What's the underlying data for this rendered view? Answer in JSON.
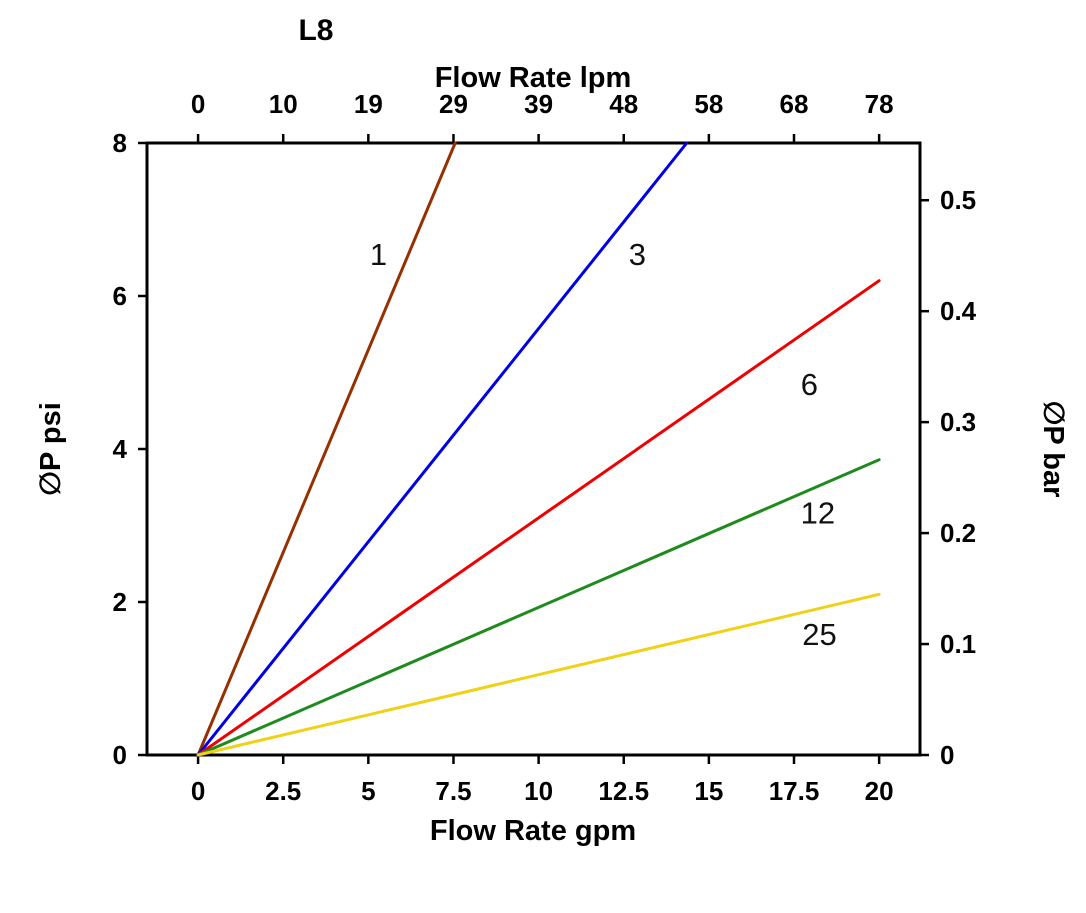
{
  "chart_data": {
    "type": "line",
    "title": "L8",
    "axes": {
      "x_bottom": {
        "label": "Flow Rate gpm",
        "range": [
          -1.5,
          21.2
        ],
        "ticks": [
          0,
          2.5,
          5,
          7.5,
          10,
          12.5,
          15,
          17.5,
          20
        ]
      },
      "x_top": {
        "label": "Flow Rate lpm",
        "tick_positions_gpm": [
          0,
          2.5,
          5,
          7.5,
          10,
          12.5,
          15,
          17.5,
          20
        ],
        "tick_labels": [
          "0",
          "10",
          "19",
          "29",
          "39",
          "48",
          "58",
          "68",
          "78"
        ]
      },
      "y_left": {
        "label": "∅P psi",
        "range": [
          0,
          8
        ],
        "ticks": [
          0,
          2,
          4,
          6,
          8
        ]
      },
      "y_right": {
        "label": "∅P bar",
        "ticks": [
          0,
          0.1,
          0.2,
          0.3,
          0.4,
          0.5
        ],
        "psi_per_bar": 14.5038
      }
    },
    "series": [
      {
        "name": "1",
        "label": "1",
        "color": "#963000",
        "points": [
          [
            0,
            0
          ],
          [
            7.55,
            8
          ]
        ],
        "label_at": [
          5.3,
          6.55
        ]
      },
      {
        "name": "3",
        "label": "3",
        "color": "#0000e6",
        "points": [
          [
            0,
            0
          ],
          [
            14.35,
            8
          ]
        ],
        "label_at": [
          12.9,
          6.55
        ]
      },
      {
        "name": "6",
        "label": "6",
        "color": "#f00000",
        "points": [
          [
            0,
            0
          ],
          [
            20,
            6.2
          ]
        ],
        "label_at": [
          17.95,
          4.85
        ]
      },
      {
        "name": "12",
        "label": "12",
        "color": "#1f8b1f",
        "points": [
          [
            0,
            0
          ],
          [
            20,
            3.86
          ]
        ],
        "label_at": [
          18.2,
          3.17
        ]
      },
      {
        "name": "25",
        "label": "25",
        "color": "#efd215",
        "points": [
          [
            0,
            0
          ],
          [
            20,
            2.1
          ]
        ],
        "label_at": [
          18.25,
          1.58
        ]
      }
    ]
  },
  "colors": {
    "background": "#ffffff",
    "axis": "#000000",
    "text": "#000000"
  }
}
